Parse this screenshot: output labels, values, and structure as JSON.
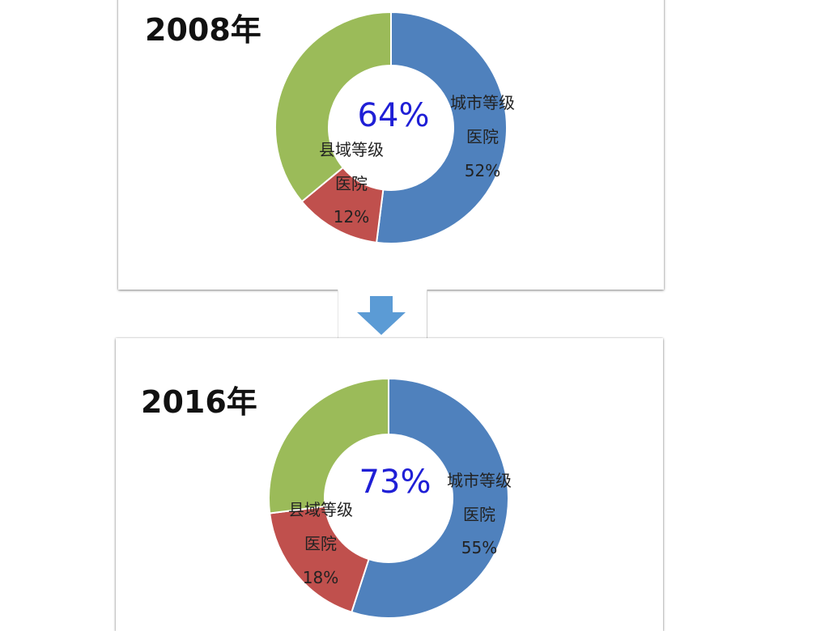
{
  "colors": {
    "city": "#4f81bd",
    "county": "#c0504d",
    "other": "#9bbb59",
    "center_pct": "#1f1fd6",
    "arrow": "#5b9bd5"
  },
  "arrow_icon": "arrow-down-icon",
  "chart_data": [
    {
      "type": "pie",
      "title": "2008年",
      "center_value": "64%",
      "slices": [
        {
          "label_line1": "城市等级",
          "label_line2": "医院",
          "pct_label": "52%",
          "value": 52,
          "color_key": "city"
        },
        {
          "label_line1": "县域等级",
          "label_line2": "医院",
          "pct_label": "12%",
          "value": 12,
          "color_key": "county"
        },
        {
          "value": 36,
          "color_key": "other"
        }
      ]
    },
    {
      "type": "pie",
      "title": "2016年",
      "center_value": "73%",
      "slices": [
        {
          "label_line1": "城市等级",
          "label_line2": "医院",
          "pct_label": "55%",
          "value": 55,
          "color_key": "city"
        },
        {
          "label_line1": "县域等级",
          "label_line2": "医院",
          "pct_label": "18%",
          "value": 18,
          "color_key": "county"
        },
        {
          "value": 27,
          "color_key": "other"
        }
      ]
    }
  ]
}
